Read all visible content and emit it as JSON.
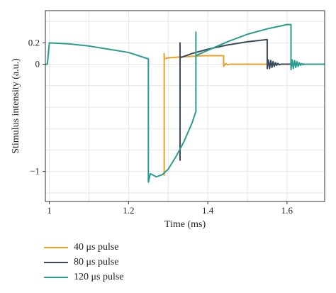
{
  "chart_data": {
    "type": "line",
    "xlabel": "Time (ms)",
    "ylabel": "Stimulus intensity (a.u.)",
    "xlim": [
      0.99,
      1.695
    ],
    "ylim": [
      -1.28,
      0.5
    ],
    "x_ticks": [
      1,
      1.2,
      1.4,
      1.6
    ],
    "x_tick_labels": [
      "1",
      "1.2",
      "1.4",
      "1.6"
    ],
    "y_ticks": [
      0.2,
      0,
      -1
    ],
    "y_tick_labels": [
      "0.2",
      "0",
      "−1"
    ],
    "grid": true,
    "legend_position": "bottom-left",
    "series": [
      {
        "name": "40 μs pulse",
        "color": "#e8a22a",
        "points": [
          [
            1.29,
            -1.04
          ],
          [
            1.29,
            0.1
          ],
          [
            1.29,
            0.05
          ],
          [
            1.3,
            0.06
          ],
          [
            1.34,
            0.07
          ],
          [
            1.39,
            0.08
          ],
          [
            1.44,
            0.08
          ],
          [
            1.44,
            -0.02
          ],
          [
            1.445,
            0.005
          ],
          [
            1.45,
            -0.005
          ],
          [
            1.455,
            0.0
          ],
          [
            1.5,
            0.0
          ],
          [
            1.695,
            0.0
          ]
        ]
      },
      {
        "name": "80 μs pulse",
        "color": "#3b4a5c",
        "points": [
          [
            1.33,
            -0.9
          ],
          [
            1.33,
            0.2
          ],
          [
            1.33,
            0.06
          ],
          [
            1.36,
            0.1
          ],
          [
            1.4,
            0.14
          ],
          [
            1.45,
            0.18
          ],
          [
            1.5,
            0.21
          ],
          [
            1.55,
            0.23
          ],
          [
            1.55,
            -0.04
          ],
          [
            1.553,
            0.04
          ],
          [
            1.556,
            -0.04
          ],
          [
            1.559,
            0.035
          ],
          [
            1.562,
            -0.03
          ],
          [
            1.565,
            0.025
          ],
          [
            1.568,
            -0.02
          ],
          [
            1.571,
            0.015
          ],
          [
            1.574,
            -0.01
          ],
          [
            1.577,
            0.008
          ],
          [
            1.58,
            -0.005
          ],
          [
            1.585,
            0.0
          ],
          [
            1.695,
            0.0
          ]
        ]
      },
      {
        "name": "120 μs pulse",
        "color": "#2a9d8f",
        "points": [
          [
            0.99,
            0.0
          ],
          [
            0.995,
            0.0
          ],
          [
            1.0,
            0.2
          ],
          [
            1.05,
            0.19
          ],
          [
            1.1,
            0.17
          ],
          [
            1.15,
            0.14
          ],
          [
            1.2,
            0.11
          ],
          [
            1.25,
            0.05
          ],
          [
            1.25,
            -0.82
          ],
          [
            1.25,
            -1.1
          ],
          [
            1.255,
            -1.02
          ],
          [
            1.27,
            -1.05
          ],
          [
            1.285,
            -1.03
          ],
          [
            1.3,
            -0.98
          ],
          [
            1.32,
            -0.86
          ],
          [
            1.34,
            -0.72
          ],
          [
            1.36,
            -0.55
          ],
          [
            1.37,
            -0.44
          ],
          [
            1.37,
            0.3
          ],
          [
            1.37,
            0.08
          ],
          [
            1.4,
            0.13
          ],
          [
            1.45,
            0.21
          ],
          [
            1.5,
            0.28
          ],
          [
            1.55,
            0.33
          ],
          [
            1.6,
            0.37
          ],
          [
            1.61,
            0.37
          ],
          [
            1.61,
            -0.05
          ],
          [
            1.613,
            0.04
          ],
          [
            1.616,
            -0.04
          ],
          [
            1.619,
            0.035
          ],
          [
            1.622,
            -0.03
          ],
          [
            1.625,
            0.025
          ],
          [
            1.628,
            -0.02
          ],
          [
            1.631,
            0.015
          ],
          [
            1.634,
            -0.01
          ],
          [
            1.637,
            0.006
          ],
          [
            1.64,
            -0.004
          ],
          [
            1.645,
            0.0
          ],
          [
            1.695,
            0.0
          ]
        ]
      }
    ]
  }
}
